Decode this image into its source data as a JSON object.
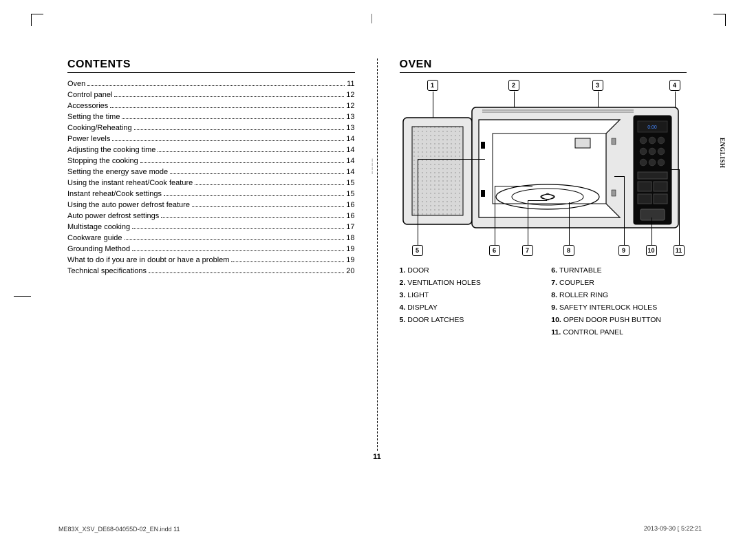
{
  "headings": {
    "contents": "CONTENTS",
    "oven": "OVEN"
  },
  "toc": [
    {
      "label": "Oven",
      "page": "11"
    },
    {
      "label": "Control panel",
      "page": "12"
    },
    {
      "label": "Accessories",
      "page": "12"
    },
    {
      "label": "Setting the time",
      "page": "13"
    },
    {
      "label": "Cooking/Reheating",
      "page": "13"
    },
    {
      "label": "Power levels",
      "page": "14"
    },
    {
      "label": "Adjusting the cooking time",
      "page": "14"
    },
    {
      "label": "Stopping the cooking",
      "page": "14"
    },
    {
      "label": "Setting the energy save mode",
      "page": "14"
    },
    {
      "label": "Using the instant reheat/Cook feature",
      "page": "15"
    },
    {
      "label": "Instant reheat/Cook settings",
      "page": "15"
    },
    {
      "label": "Using the auto power defrost feature",
      "page": "16"
    },
    {
      "label": "Auto power defrost settings",
      "page": "16"
    },
    {
      "label": "Multistage cooking",
      "page": "17"
    },
    {
      "label": "Cookware guide",
      "page": "18"
    },
    {
      "label": "Grounding Method",
      "page": "19"
    },
    {
      "label": "What to do if you are in doubt or have a problem",
      "page": "19"
    },
    {
      "label": "Technical specifications",
      "page": "20"
    }
  ],
  "callouts_top": [
    "1",
    "2",
    "3",
    "4"
  ],
  "callouts_bottom": [
    "5",
    "6",
    "7",
    "8",
    "9",
    "10",
    "11"
  ],
  "legend_left": [
    {
      "n": "1.",
      "t": "DOOR"
    },
    {
      "n": "2.",
      "t": "VENTILATION HOLES"
    },
    {
      "n": "3.",
      "t": "LIGHT"
    },
    {
      "n": "4.",
      "t": "DISPLAY"
    },
    {
      "n": "5.",
      "t": "DOOR LATCHES"
    }
  ],
  "legend_right": [
    {
      "n": "6.",
      "t": "TURNTABLE"
    },
    {
      "n": "7.",
      "t": "COUPLER"
    },
    {
      "n": "8.",
      "t": "ROLLER RING"
    },
    {
      "n": "9.",
      "t": "SAFETY INTERLOCK HOLES"
    },
    {
      "n": "10.",
      "t": "OPEN DOOR PUSH BUTTON"
    },
    {
      "n": "11.",
      "t": "CONTROL PANEL"
    }
  ],
  "side_lang": "ENGLISH",
  "page_number": "11",
  "footer_left": "ME83X_XSV_DE68-04055D-02_EN.indd   11",
  "footer_right": "2013-09-30   ⦏ 5:22:21",
  "style": {
    "page_bg": "#ffffff",
    "text_color": "#000000",
    "heading_fontsize": 16,
    "body_fontsize": 11,
    "legend_fontsize": 10.5,
    "callout_border": "#000000",
    "oven_body_fill": "#e8e8e8",
    "oven_cavity_fill": "#ffffff",
    "panel_fill": "#0a0a0a"
  }
}
